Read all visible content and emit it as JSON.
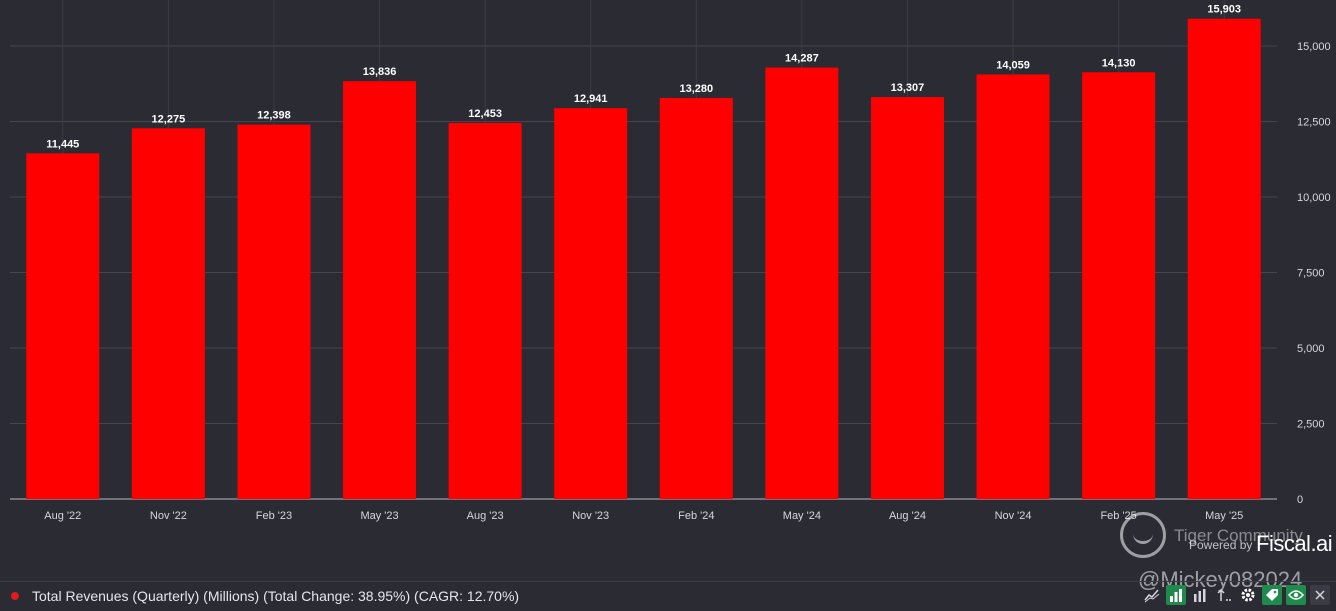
{
  "chart_data": {
    "type": "bar",
    "categories": [
      "Aug '22",
      "Nov '22",
      "Feb '23",
      "May '23",
      "Aug '23",
      "Nov '23",
      "Feb '24",
      "May '24",
      "Aug '24",
      "Nov '24",
      "Feb '25",
      "May '25"
    ],
    "series": [
      {
        "name": "Total Revenues (Quarterly) (Millions) (Total Change: 38.95%) (CAGR: 12.70%)",
        "values": [
          11445,
          12275,
          12398,
          13836,
          12453,
          12941,
          13280,
          14287,
          13307,
          14059,
          14130,
          15903
        ]
      }
    ],
    "data_labels": [
      "11,445",
      "12,275",
      "12,398",
      "13,836",
      "12,453",
      "12,941",
      "13,280",
      "14,287",
      "13,307",
      "14,059",
      "14,130",
      "15,903"
    ],
    "y_ticks": [
      0,
      2500,
      5000,
      7500,
      10000,
      12500,
      15000
    ],
    "y_tick_labels": [
      "0",
      "2,500",
      "5,000",
      "7,500",
      "10,000",
      "12,500",
      "15,000"
    ],
    "ylim": [
      0,
      16500
    ],
    "y_axis_side": "right",
    "grid": true,
    "bar_color": "#ff0000",
    "background": "#2a2b33"
  },
  "legend": {
    "text": "Total Revenues (Quarterly) (Millions) (Total Change: 38.95%) (CAGR: 12.70%)",
    "dot_color": "#e01b1b"
  },
  "watermark": {
    "community": "Tiger Community",
    "powered_by": "Powered by",
    "brand": "Fiscal.ai",
    "handle": "@Mickey082024"
  },
  "toolbar": {
    "icons": [
      "trend-icon",
      "bar-chart-icon",
      "column-icon",
      "sort-icon",
      "gear-icon",
      "tag-icon",
      "eye-icon",
      "close-icon"
    ]
  }
}
